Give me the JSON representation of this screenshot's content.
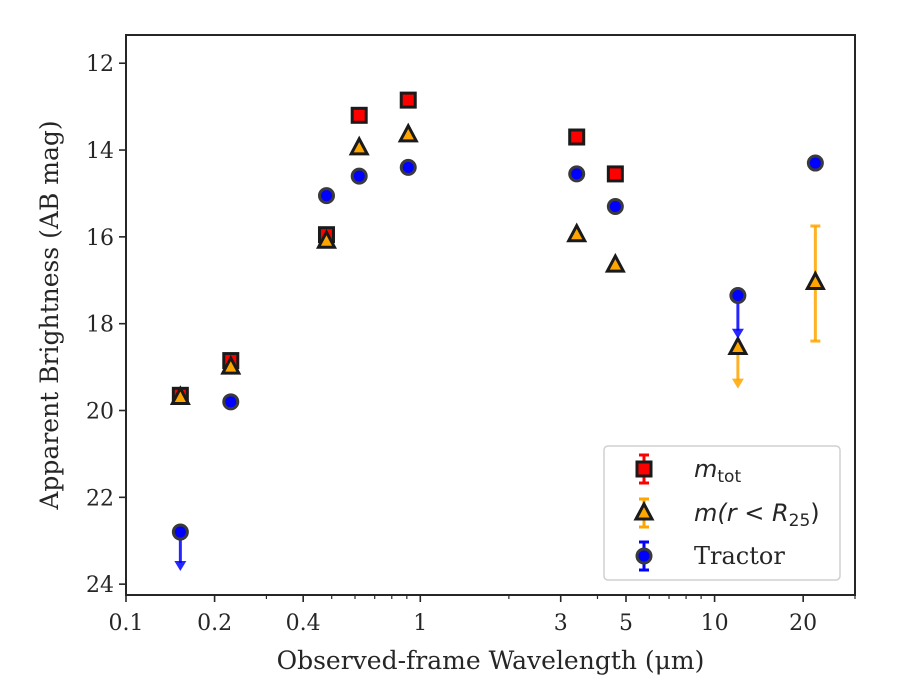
{
  "chart_data": {
    "type": "scatter",
    "title": "",
    "xlabel": "Observed-frame Wavelength (μm)",
    "ylabel": "Apparent Brightness (AB mag)",
    "xscale": "log",
    "xlim": [
      0.1,
      30
    ],
    "ylim": [
      24.25,
      11.35
    ],
    "y_inverted": true,
    "grid": false,
    "legend_position": "lower-right",
    "xticks": [
      {
        "value": 0.1,
        "label": "0.1"
      },
      {
        "value": 0.2,
        "label": "0.2"
      },
      {
        "value": 0.4,
        "label": "0.4"
      },
      {
        "value": 1,
        "label": "1"
      },
      {
        "value": 3,
        "label": "3"
      },
      {
        "value": 5,
        "label": "5"
      },
      {
        "value": 10,
        "label": "10"
      },
      {
        "value": 20,
        "label": "20"
      }
    ],
    "xminor": [
      0.3,
      0.5,
      0.6,
      0.7,
      0.8,
      0.9,
      2,
      4,
      6,
      7,
      8,
      9,
      30
    ],
    "yticks": [
      {
        "value": 12,
        "label": "12"
      },
      {
        "value": 14,
        "label": "14"
      },
      {
        "value": 16,
        "label": "16"
      },
      {
        "value": 18,
        "label": "18"
      },
      {
        "value": 20,
        "label": "20"
      },
      {
        "value": 22,
        "label": "22"
      },
      {
        "value": 24,
        "label": "24"
      }
    ],
    "series": [
      {
        "key": "mtot",
        "name_main": "m",
        "name_sub": "tot",
        "marker": "square",
        "color": "#ff0000",
        "points": [
          {
            "x": 0.153,
            "y": 19.65
          },
          {
            "x": 0.227,
            "y": 18.85
          },
          {
            "x": 0.48,
            "y": 15.95
          },
          {
            "x": 0.62,
            "y": 13.2
          },
          {
            "x": 0.91,
            "y": 12.85
          },
          {
            "x": 3.4,
            "y": 13.7
          },
          {
            "x": 4.6,
            "y": 14.55
          }
        ]
      },
      {
        "key": "mr25",
        "name_prefix": "m(r < R",
        "name_sub": "25",
        "name_suffix": ")",
        "marker": "triangle",
        "color": "#ffa500",
        "points": [
          {
            "x": 0.153,
            "y": 19.7
          },
          {
            "x": 0.227,
            "y": 19.0
          },
          {
            "x": 0.48,
            "y": 16.1
          },
          {
            "x": 0.62,
            "y": 13.95
          },
          {
            "x": 0.91,
            "y": 13.65
          },
          {
            "x": 3.4,
            "y": 15.95
          },
          {
            "x": 4.6,
            "y": 16.65
          },
          {
            "x": 12.0,
            "y": 18.55,
            "upper_limit_to": 19.45
          },
          {
            "x": 22.0,
            "y": 17.05,
            "err_low": 15.75,
            "err_high": 18.4
          }
        ]
      },
      {
        "key": "tractor",
        "name": "Tractor",
        "marker": "circle",
        "color": "#0000ff",
        "points": [
          {
            "x": 0.153,
            "y": 22.8,
            "upper_limit_to": 23.65
          },
          {
            "x": 0.227,
            "y": 19.8
          },
          {
            "x": 0.48,
            "y": 15.05
          },
          {
            "x": 0.62,
            "y": 14.6
          },
          {
            "x": 0.91,
            "y": 14.4
          },
          {
            "x": 3.4,
            "y": 14.55
          },
          {
            "x": 4.6,
            "y": 15.3
          },
          {
            "x": 12.0,
            "y": 17.35,
            "upper_limit_to": 18.3
          },
          {
            "x": 22.0,
            "y": 14.3
          }
        ]
      }
    ]
  }
}
